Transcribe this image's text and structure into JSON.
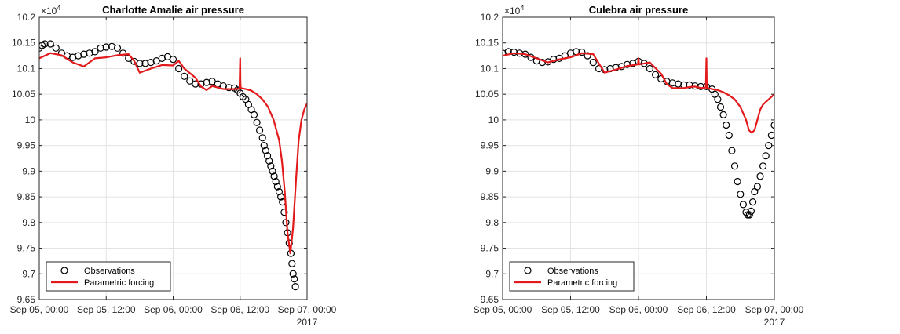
{
  "chart_data": [
    {
      "type": "line",
      "title": "Charlotte Amalie air pressure",
      "x_kind": "datetime",
      "x_ticks": [
        "Sep 05, 00:00",
        "Sep 05, 12:00",
        "Sep 06, 00:00",
        "Sep 06, 12:00",
        "Sep 07, 00:00"
      ],
      "x_tick_hours": [
        0,
        12,
        24,
        36,
        48
      ],
      "x_secondary_label": "2017",
      "xlim_hours": [
        0,
        48
      ],
      "ylim": [
        9.65,
        10.2
      ],
      "y_ticks": [
        9.65,
        9.7,
        9.75,
        9.8,
        9.85,
        9.9,
        9.95,
        10,
        10.05,
        10.1,
        10.15,
        10.2
      ],
      "y_multiplier": "×10",
      "y_multiplier_exp": "4",
      "grid": true,
      "legend_position": "bottom-left",
      "series": [
        {
          "name": "Observations",
          "style": "markers",
          "marker": "open-circle",
          "color": "#000000",
          "x_hours": [
            0,
            0.5,
            1,
            2,
            3,
            4,
            5,
            6,
            7,
            8,
            9,
            10,
            11,
            12,
            13,
            14,
            15,
            16,
            17,
            18,
            19,
            20,
            21,
            22,
            23,
            24,
            25,
            26,
            27,
            28,
            29,
            30,
            31,
            32,
            33,
            34,
            35,
            35.5,
            36,
            36.5,
            37,
            37.5,
            38,
            38.5,
            39,
            39.5,
            40,
            40.3,
            40.6,
            40.9,
            41.2,
            41.5,
            41.8,
            42.1,
            42.4,
            42.7,
            43,
            43.3,
            43.6,
            43.9,
            44.2,
            44.5,
            44.8,
            45.1,
            45.3,
            45.5,
            45.7,
            45.9
          ],
          "values": [
            10.14,
            10.145,
            10.148,
            10.148,
            10.14,
            10.13,
            10.125,
            10.122,
            10.125,
            10.128,
            10.13,
            10.133,
            10.14,
            10.142,
            10.143,
            10.14,
            10.13,
            10.12,
            10.114,
            10.11,
            10.11,
            10.112,
            10.115,
            10.12,
            10.123,
            10.118,
            10.1,
            10.085,
            10.076,
            10.07,
            10.07,
            10.073,
            10.075,
            10.07,
            10.066,
            10.063,
            10.062,
            10.058,
            10.052,
            10.045,
            10.04,
            10.03,
            10.02,
            10.01,
            9.995,
            9.98,
            9.965,
            9.95,
            9.94,
            9.93,
            9.92,
            9.91,
            9.9,
            9.89,
            9.88,
            9.87,
            9.86,
            9.85,
            9.84,
            9.82,
            9.8,
            9.78,
            9.76,
            9.74,
            9.72,
            9.7,
            9.69,
            9.675
          ]
        },
        {
          "name": "Parametric forcing",
          "style": "line",
          "color": "#e31a1c",
          "x_hours": [
            0,
            2,
            4,
            6,
            8,
            10,
            12,
            14,
            16,
            17,
            18,
            20,
            22,
            24,
            25,
            26,
            28,
            29,
            30,
            31,
            32,
            33,
            34,
            35,
            35.9,
            36,
            36.05,
            36.1,
            37,
            38,
            39,
            40,
            41,
            42,
            43,
            43.5,
            44,
            44.5,
            45,
            45.5,
            46,
            46.5,
            47,
            47.5,
            48,
            49,
            50
          ],
          "values": [
            10.12,
            10.13,
            10.126,
            10.112,
            10.104,
            10.12,
            10.122,
            10.126,
            10.128,
            10.115,
            10.092,
            10.1,
            10.107,
            10.106,
            10.115,
            10.1,
            10.082,
            10.065,
            10.058,
            10.066,
            10.063,
            10.06,
            10.06,
            10.06,
            10.061,
            10.12,
            10.075,
            10.062,
            10.06,
            10.057,
            10.05,
            10.04,
            10.025,
            10.0,
            9.96,
            9.92,
            9.86,
            9.78,
            9.74,
            9.79,
            9.88,
            9.96,
            10.0,
            10.02,
            10.032,
            10.045,
            10.055
          ]
        }
      ]
    },
    {
      "type": "line",
      "title": "Culebra air pressure",
      "x_kind": "datetime",
      "x_ticks": [
        "Sep 05, 00:00",
        "Sep 05, 12:00",
        "Sep 06, 00:00",
        "Sep 06, 12:00",
        "Sep 07, 00:00"
      ],
      "x_tick_hours": [
        0,
        12,
        24,
        36,
        48
      ],
      "x_secondary_label": "2017",
      "xlim_hours": [
        0,
        48
      ],
      "ylim": [
        9.65,
        10.2
      ],
      "y_ticks": [
        9.65,
        9.7,
        9.75,
        9.8,
        9.85,
        9.9,
        9.95,
        10,
        10.05,
        10.1,
        10.15,
        10.2
      ],
      "y_multiplier": "×10",
      "y_multiplier_exp": "4",
      "grid": true,
      "legend_position": "bottom-left",
      "series": [
        {
          "name": "Observations",
          "style": "markers",
          "marker": "open-circle",
          "color": "#000000",
          "x_hours": [
            0,
            1,
            2,
            3,
            4,
            5,
            6,
            7,
            8,
            9,
            10,
            11,
            12,
            13,
            14,
            15,
            16,
            17,
            18,
            19,
            20,
            21,
            22,
            23,
            24,
            25,
            26,
            27,
            28,
            29,
            30,
            31,
            32,
            33,
            34,
            35,
            36,
            37,
            37.5,
            38,
            38.5,
            39,
            39.5,
            40,
            40.5,
            41,
            41.5,
            42,
            42.5,
            43,
            43.3,
            43.6,
            43.9,
            44.2,
            44.5,
            45,
            45.5,
            46,
            46.5,
            47,
            47.5,
            48
          ],
          "values": [
            10.13,
            10.133,
            10.132,
            10.13,
            10.128,
            10.122,
            10.115,
            10.112,
            10.113,
            10.118,
            10.12,
            10.125,
            10.13,
            10.133,
            10.132,
            10.125,
            10.112,
            10.1,
            10.098,
            10.1,
            10.102,
            10.104,
            10.108,
            10.11,
            10.114,
            10.11,
            10.1,
            10.088,
            10.08,
            10.075,
            10.072,
            10.07,
            10.068,
            10.068,
            10.066,
            10.065,
            10.065,
            10.06,
            10.05,
            10.04,
            10.025,
            10.01,
            9.99,
            9.97,
            9.94,
            9.91,
            9.88,
            9.855,
            9.835,
            9.82,
            9.815,
            9.815,
            9.822,
            9.84,
            9.86,
            9.87,
            9.89,
            9.91,
            9.93,
            9.95,
            9.97,
            9.99
          ]
        },
        {
          "name": "Parametric forcing",
          "style": "line",
          "color": "#e31a1c",
          "x_hours": [
            0,
            2,
            4,
            6,
            8,
            10,
            12,
            14,
            16,
            17,
            18,
            20,
            22,
            23.9,
            24,
            24.1,
            26,
            28,
            29,
            30,
            31,
            32,
            33,
            34,
            35,
            35.9,
            36,
            36.05,
            36.1,
            37,
            38,
            39,
            40,
            41,
            42,
            43,
            43.5,
            44,
            44.5,
            45,
            45.5,
            46,
            47,
            48
          ],
          "values": [
            10.125,
            10.13,
            10.128,
            10.12,
            10.112,
            10.118,
            10.122,
            10.13,
            10.128,
            10.11,
            10.092,
            10.098,
            10.105,
            10.108,
            10.12,
            10.108,
            10.112,
            10.09,
            10.07,
            10.062,
            10.062,
            10.062,
            10.064,
            10.065,
            10.062,
            10.063,
            10.12,
            10.07,
            10.062,
            10.06,
            10.058,
            10.054,
            10.048,
            10.04,
            10.025,
            10.0,
            9.98,
            9.975,
            9.98,
            10.0,
            10.02,
            10.03,
            10.04,
            10.05
          ]
        }
      ]
    }
  ]
}
